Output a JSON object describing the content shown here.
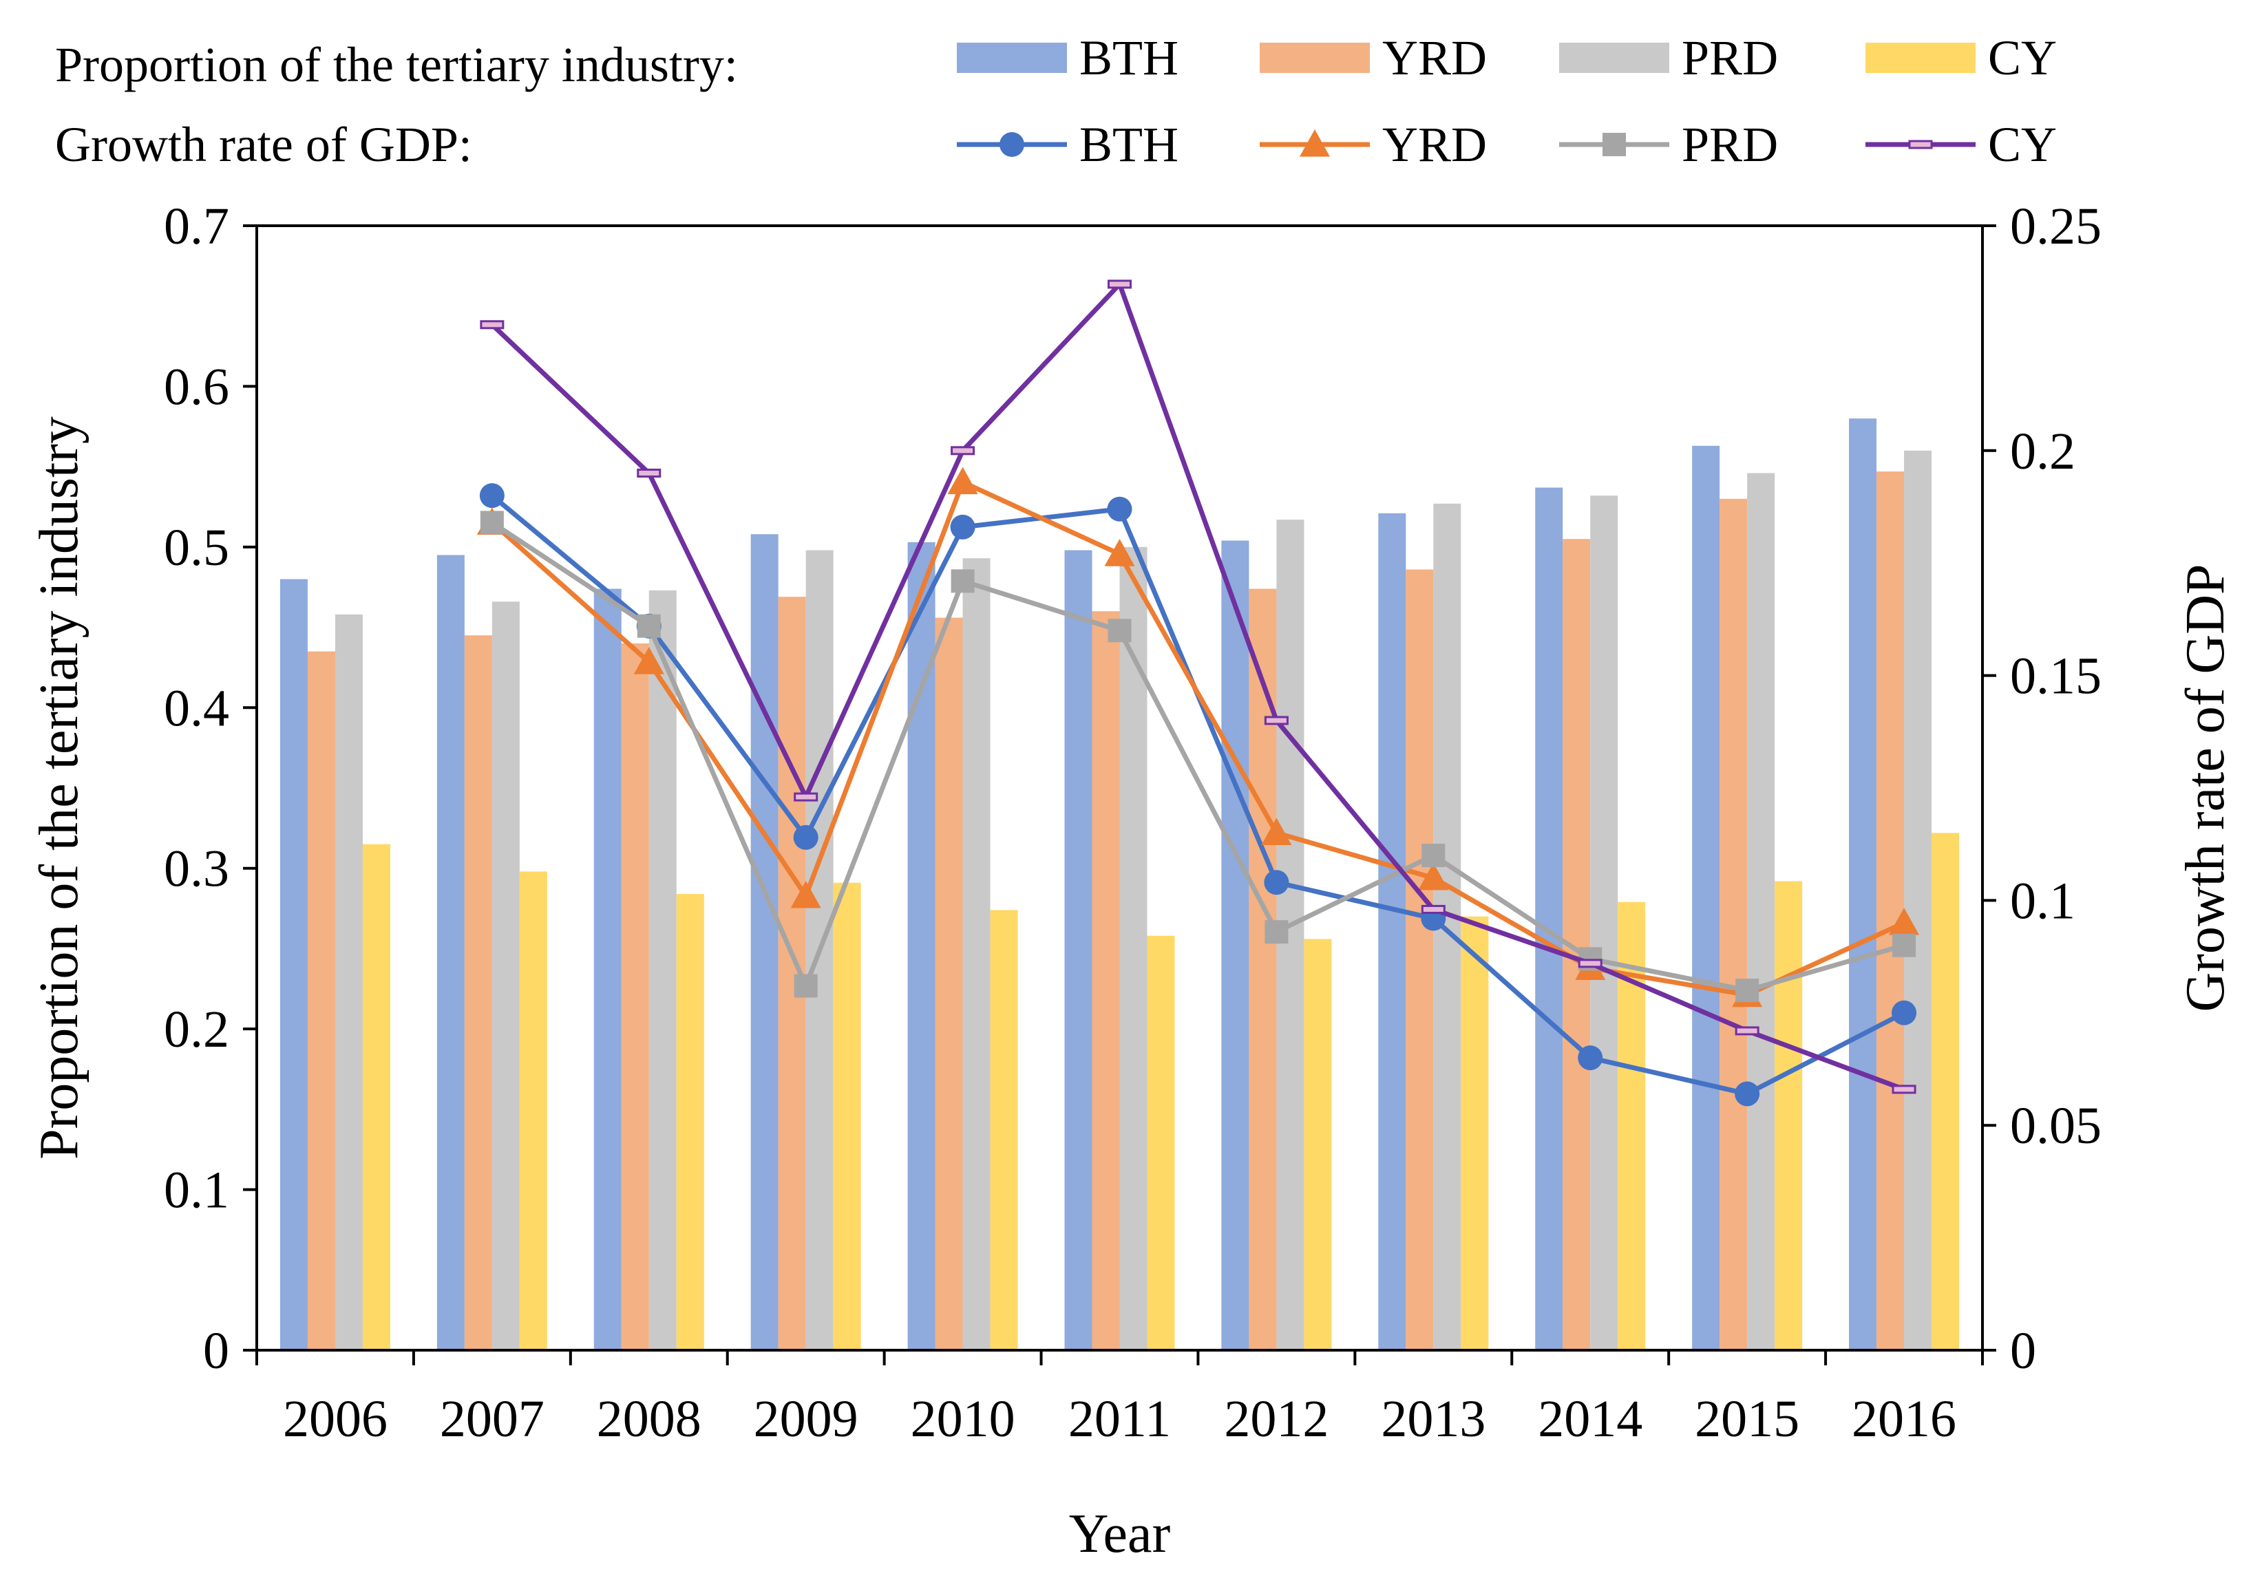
{
  "chart_data": {
    "type": "bar+line",
    "categories": [
      "2006",
      "2007",
      "2008",
      "2009",
      "2010",
      "2011",
      "2012",
      "2013",
      "2014",
      "2015",
      "2016"
    ],
    "xlabel": "Year",
    "ylabel_left": "Proportion of the tertiary industry",
    "ylabel_right": "Growth rate of GDP",
    "ylim_left": [
      0,
      0.7
    ],
    "ylim_right": [
      0,
      0.25
    ],
    "yticks_left": [
      "0",
      "0.1",
      "0.2",
      "0.3",
      "0.4",
      "0.5",
      "0.6",
      "0.7"
    ],
    "yticks_right": [
      "0",
      "0.05",
      "0.1",
      "0.15",
      "0.2",
      "0.25"
    ],
    "legend": {
      "bar_heading": "Proportion of the tertiary industry:",
      "line_heading": "Growth rate of GDP:"
    },
    "bar_series": [
      {
        "name": "BTH",
        "color": "#8FAADC",
        "values": [
          0.48,
          0.495,
          0.474,
          0.508,
          0.503,
          0.498,
          0.504,
          0.521,
          0.537,
          0.563,
          0.58
        ]
      },
      {
        "name": "YRD",
        "color": "#F4B183",
        "values": [
          0.435,
          0.445,
          0.44,
          0.469,
          0.456,
          0.46,
          0.474,
          0.486,
          0.505,
          0.53,
          0.547
        ]
      },
      {
        "name": "PRD",
        "color": "#C9C9C9",
        "values": [
          0.458,
          0.466,
          0.473,
          0.498,
          0.493,
          0.5,
          0.517,
          0.527,
          0.532,
          0.546,
          0.56
        ]
      },
      {
        "name": "CY",
        "color": "#FFD966",
        "values": [
          0.315,
          0.298,
          0.284,
          0.291,
          0.274,
          0.258,
          0.256,
          0.27,
          0.279,
          0.292,
          0.322
        ]
      }
    ],
    "line_series": [
      {
        "name": "BTH",
        "color": "#4472C4",
        "marker": "circle",
        "values": [
          null,
          0.19,
          0.161,
          0.114,
          0.183,
          0.187,
          0.104,
          0.096,
          0.065,
          0.057,
          0.075
        ]
      },
      {
        "name": "YRD",
        "color": "#ED7D31",
        "marker": "triangle",
        "values": [
          null,
          0.184,
          0.153,
          0.101,
          0.193,
          0.177,
          0.115,
          0.105,
          0.085,
          0.079,
          0.095
        ]
      },
      {
        "name": "PRD",
        "color": "#A5A5A5",
        "marker": "square",
        "values": [
          null,
          0.184,
          0.161,
          0.081,
          0.171,
          0.16,
          0.093,
          0.11,
          0.087,
          0.08,
          0.09
        ]
      },
      {
        "name": "CY",
        "color": "#7030A0",
        "marker": "dash",
        "values": [
          null,
          0.228,
          0.195,
          0.123,
          0.2,
          0.237,
          0.14,
          0.098,
          0.086,
          0.071,
          0.058
        ]
      }
    ]
  }
}
